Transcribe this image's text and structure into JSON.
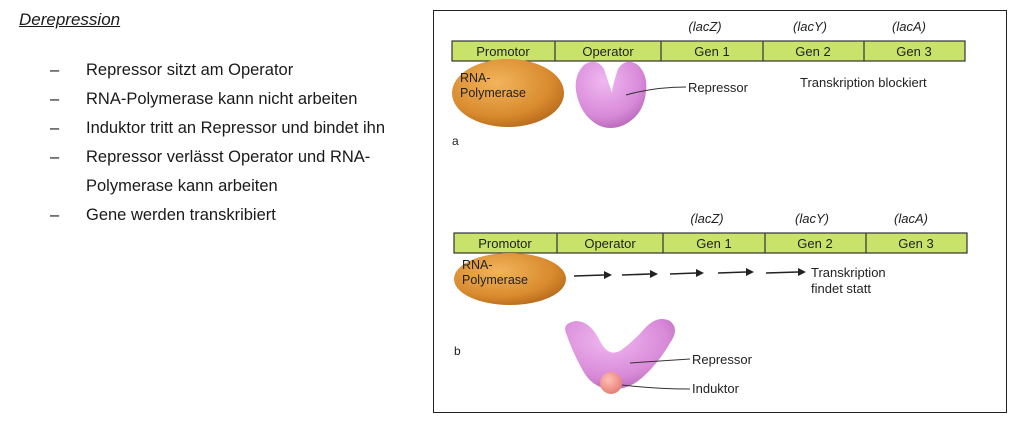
{
  "heading": "Derepression",
  "bullets": [
    "Repressor sitzt am Operator",
    "RNA-Polymerase kann nicht arbeiten",
    "Induktor tritt an Repressor und bindet ihn",
    "Repressor verlässt Operator und RNA-Polymerase kann arbeiten",
    "Gene werden transkribiert"
  ],
  "figure": {
    "panel_a": {
      "letter": "a",
      "genes": [
        "(lacZ)",
        "(lacY)",
        "(lacA)"
      ],
      "segments": [
        "Promotor",
        "Operator",
        "Gen 1",
        "Gen 2",
        "Gen 3"
      ],
      "polymerase": [
        "RNA-",
        "Polymerase"
      ],
      "repressor_label": "Repressor",
      "status": "Transkription blockiert"
    },
    "panel_b": {
      "letter": "b",
      "genes": [
        "(lacZ)",
        "(lacY)",
        "(lacA)"
      ],
      "segments": [
        "Promotor",
        "Operator",
        "Gen 1",
        "Gen 2",
        "Gen 3"
      ],
      "polymerase": [
        "RNA-",
        "Polymerase"
      ],
      "status": [
        "Transkription",
        "findet statt"
      ],
      "repressor_label": "Repressor",
      "inducer_label": "Induktor"
    },
    "colors": {
      "dna_bar": "#c8e26a",
      "polymerase": "#d98a2e",
      "repressor": "#d88ad8",
      "inducer": "#f0908a"
    }
  }
}
